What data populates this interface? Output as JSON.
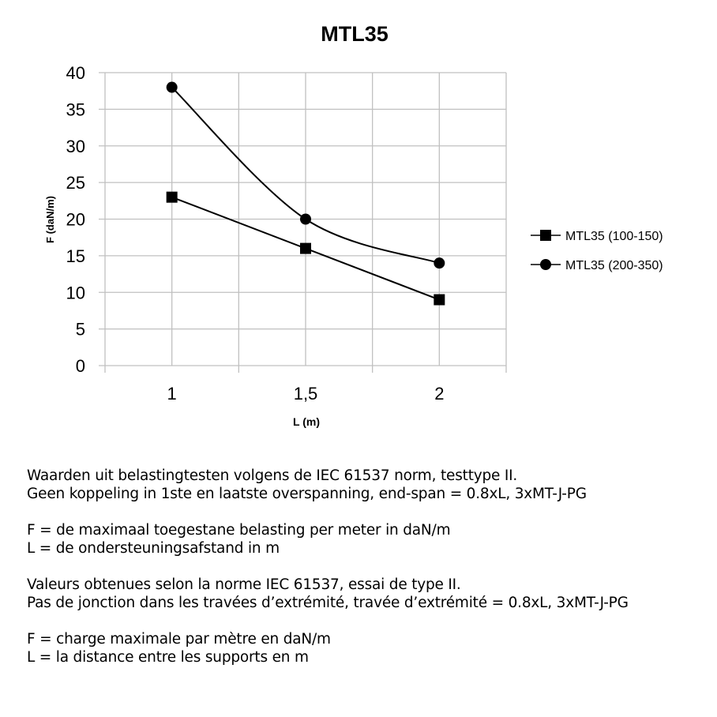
{
  "chart_data": {
    "type": "line",
    "title": "MTL35",
    "xlabel": "L (m)",
    "ylabel": "F (daN/m)",
    "categories": [
      "1",
      "1,5",
      "2"
    ],
    "ylim": [
      0,
      40
    ],
    "yticks": [
      "0",
      "5",
      "10",
      "15",
      "20",
      "25",
      "30",
      "35",
      "40"
    ],
    "grid": true,
    "legend_position": "right",
    "series": [
      {
        "name": "MTL35 (100-150)",
        "marker": "square",
        "smooth": false,
        "values": [
          23,
          16,
          9
        ],
        "color": "#000000"
      },
      {
        "name": "MTL35 (200-350)",
        "marker": "circle",
        "smooth": true,
        "values": [
          38,
          20,
          14
        ],
        "color": "#000000"
      }
    ],
    "grid_color": "#c0c0c0"
  },
  "notes": {
    "nl": {
      "line1": "Waarden uit belastingtesten volgens de IEC 61537 norm, testtype II.",
      "line2": "Geen koppeling in 1ste en laatste overspanning, end-span = 0.8xL, 3xMT-J-PG",
      "line3": "F = de maximaal toegestane belasting per meter in daN/m",
      "line4": "L = de ondersteuningsafstand in m"
    },
    "fr": {
      "line1": "Valeurs obtenues selon la norme IEC 61537, essai de type II.",
      "line2": "Pas de jonction dans les travées d’extrémité, travée d’extrémité = 0.8xL, 3xMT-J-PG",
      "line3": "F = charge maximale par mètre en daN/m",
      "line4": "L = la distance entre les supports en m"
    }
  }
}
